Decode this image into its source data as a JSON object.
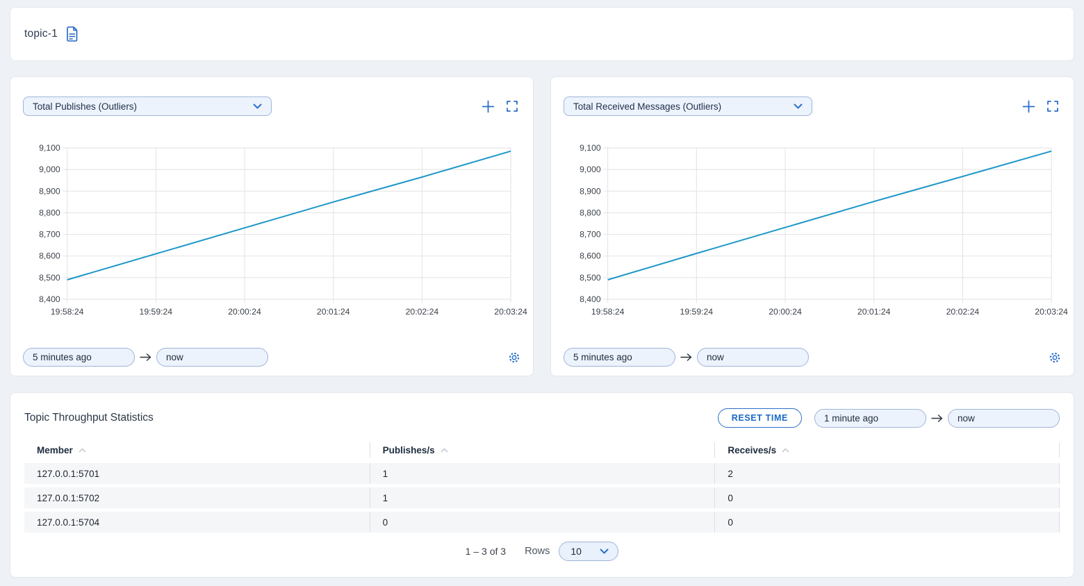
{
  "topbar": {
    "title": "topic-1"
  },
  "charts": [
    {
      "metric": "Total Publishes (Outliers)",
      "from": "5 minutes ago",
      "to": "now"
    },
    {
      "metric": "Total Received Messages (Outliers)",
      "from": "5 minutes ago",
      "to": "now"
    }
  ],
  "chart_data": [
    {
      "type": "line",
      "title": "Total Publishes (Outliers)",
      "x": [
        "19:58:24",
        "19:59:24",
        "20:00:24",
        "20:01:24",
        "20:02:24",
        "20:03:24"
      ],
      "values": [
        8490,
        8610,
        8730,
        8850,
        8965,
        9085
      ],
      "ylim": [
        8400,
        9100
      ],
      "ytick_step": 100,
      "grid": true,
      "legend": "none",
      "line_color": "#1d96c9"
    },
    {
      "type": "line",
      "title": "Total Received Messages (Outliers)",
      "x": [
        "19:58:24",
        "19:59:24",
        "20:00:24",
        "20:01:24",
        "20:02:24",
        "20:03:24"
      ],
      "values": [
        8490,
        8612,
        8732,
        8852,
        8968,
        9085
      ],
      "ylim": [
        8400,
        9100
      ],
      "ytick_step": 100,
      "grid": true,
      "legend": "none",
      "line_color": "#1d96c9"
    }
  ],
  "stats": {
    "title": "Topic Throughput Statistics",
    "reset_button": "RESET TIME",
    "from": "1 minute ago",
    "to": "now",
    "table": {
      "columns": [
        "Member",
        "Publishes/s",
        "Receives/s"
      ],
      "rows": [
        [
          "127.0.0.1:5701",
          "1",
          "2"
        ],
        [
          "127.0.0.1:5702",
          "1",
          "0"
        ],
        [
          "127.0.0.1:5704",
          "0",
          "0"
        ]
      ]
    },
    "pagination": {
      "range": "1 – 3 of 3",
      "rows_label": "Rows",
      "rows_per_page": "10"
    }
  },
  "colors": {
    "accent": "#2a6fc9",
    "line": "#1d96c9",
    "input_bg": "#edf3fc",
    "input_border": "#9fb4d8",
    "row_bg": "#f5f6f8",
    "page_bg": "#eef1f5"
  }
}
